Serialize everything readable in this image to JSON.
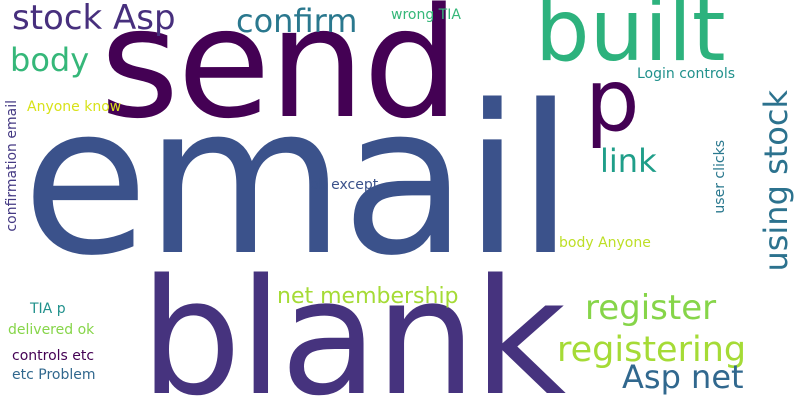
{
  "words": {
    "email": "email",
    "send": "send",
    "blank": "blank",
    "built": "built",
    "p": "p",
    "stock_asp": "stock Asp",
    "confirm": "confirm",
    "body": "body",
    "link": "link",
    "using_stock": "using stock",
    "register": "register",
    "registering": "registering",
    "asp_net": "Asp net",
    "net_membership": "net membership",
    "wrong_tia": "wrong TIA",
    "login_controls": "Login controls",
    "anyone_know": "Anyone know",
    "confirmation_email": "confirmation email",
    "ok_except": "ok except",
    "body_anyone": "body Anyone",
    "user_clicks": "user clicks",
    "tia_p": "TIA p",
    "delivered_ok": "delivered ok",
    "controls_etc": "controls etc",
    "etc_problem": "etc Problem"
  },
  "colors": {
    "email": "#3b528b",
    "send": "#440154",
    "blank": "#46337e",
    "built": "#2db27d",
    "p": "#440154",
    "stock_asp": "#472f7d",
    "confirm": "#2a788e",
    "body": "#35b779",
    "link": "#1f9e89",
    "using_stock": "#2c728e",
    "register": "#86d549",
    "registering": "#a5db36",
    "asp_net": "#31688e",
    "net_membership": "#a5db36",
    "wrong_tia": "#35b779",
    "login_controls": "#21918c",
    "anyone_know": "#d8e219",
    "confirmation_email": "#443983",
    "ok_except": "#3b528b",
    "body_anyone": "#bddf26",
    "user_clicks": "#2a788e",
    "tia_p": "#21918c",
    "delivered_ok": "#86d549",
    "controls_etc": "#440154",
    "etc_problem": "#31688e"
  }
}
